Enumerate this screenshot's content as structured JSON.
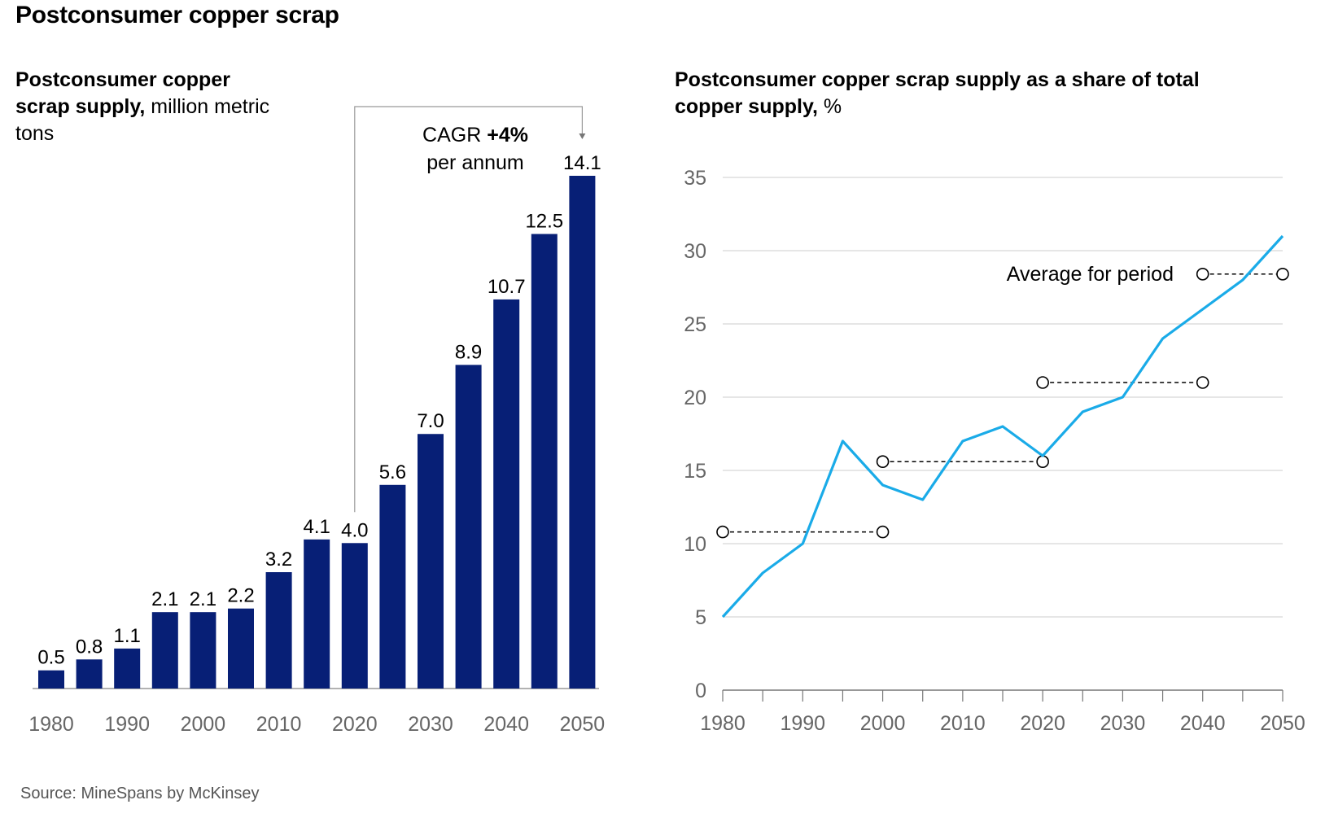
{
  "title": "Postconsumer copper scrap",
  "left_subtitle_bold": "Postconsumer copper scrap supply,",
  "left_subtitle_unit": " million metric tons",
  "right_subtitle_bold": "Postconsumer copper scrap supply as a share of total copper supply,",
  "right_subtitle_unit": " %",
  "source": "Source: MineSpans by McKinsey",
  "cagr": {
    "prefix": "CAGR ",
    "value": "+4%",
    "suffix": "per annum"
  },
  "average_label": "Average for period",
  "colors": {
    "bar": "#071f76",
    "line": "#1aabe8",
    "average": "#000000"
  },
  "chart_data": [
    {
      "type": "bar",
      "x": [
        1980,
        1985,
        1990,
        1995,
        2000,
        2005,
        2010,
        2015,
        2020,
        2025,
        2030,
        2035,
        2040,
        2045,
        2050
      ],
      "values": [
        0.5,
        0.8,
        1.1,
        2.1,
        2.1,
        2.2,
        3.2,
        4.1,
        4.0,
        5.6,
        7.0,
        8.9,
        10.7,
        12.5,
        14.1
      ],
      "value_labels": [
        "0.5",
        "0.8",
        "1.1",
        "2.1",
        "2.1",
        "2.2",
        "3.2",
        "4.1",
        "4.0",
        "5.6",
        "7.0",
        "8.9",
        "10.7",
        "12.5",
        "14.1"
      ],
      "tick_labels": [
        "1980",
        "1990",
        "2000",
        "2010",
        "2020",
        "2030",
        "2040",
        "2050"
      ],
      "ylim": [
        0,
        14.1
      ],
      "annotation": {
        "from": 2020,
        "to": 2050,
        "text": "CAGR +4% per annum"
      }
    },
    {
      "type": "line",
      "x": [
        1980,
        1985,
        1990,
        1995,
        2000,
        2005,
        2010,
        2015,
        2020,
        2025,
        2030,
        2035,
        2040,
        2045,
        2050
      ],
      "values": [
        5,
        8,
        10,
        17,
        14,
        13,
        17,
        18,
        16,
        19,
        20,
        24,
        26,
        28,
        31
      ],
      "averages": [
        {
          "from": 1980,
          "to": 2000,
          "value": 10.8
        },
        {
          "from": 2000,
          "to": 2020,
          "value": 15.6
        },
        {
          "from": 2020,
          "to": 2040,
          "value": 21
        },
        {
          "from": 2040,
          "to": 2050,
          "value": 28.4
        }
      ],
      "ylim": [
        0,
        35
      ],
      "yticks": [
        "0",
        "5",
        "10",
        "15",
        "20",
        "25",
        "30",
        "35"
      ],
      "xlim": [
        1980,
        2050
      ],
      "tick_labels": [
        "1980",
        "1990",
        "2000",
        "2010",
        "2020",
        "2030",
        "2040",
        "2050"
      ],
      "grid": true
    }
  ]
}
